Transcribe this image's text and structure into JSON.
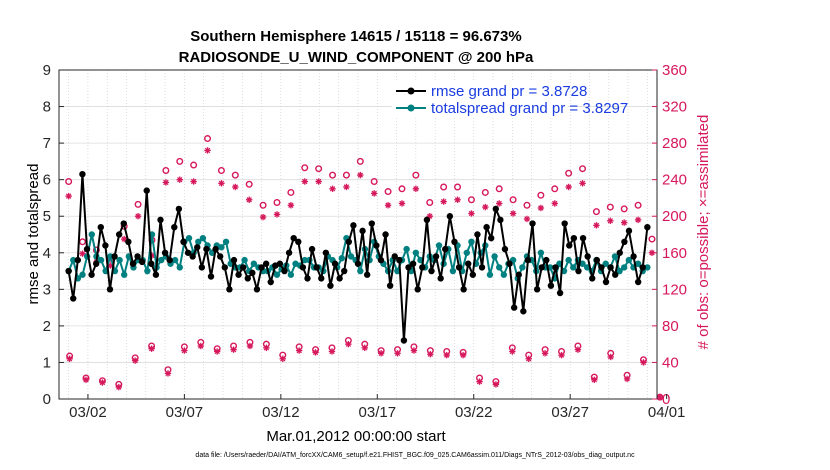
{
  "chart_data": {
    "type": "line",
    "title": "Southern Hemisphere 14615 / 15118 = 96.673%",
    "subtitle": "RADIOSONDE_U_WIND_COMPONENT @ 200 hPa",
    "xlabel": "Mar.01,2012 00:00:00 start",
    "ylabel": "rmse and totalspread",
    "y2label": "# of obs: o=possible; ×=assimilated",
    "footer": "data file: /Users/raeder/DAI/ATM_forcXX/CAM6_setup/f.e21.FHIST_BGC.f09_025.CAM6assim.011/Diags_NTrS_2012-03/obs_diag_output.nc",
    "xlim": [
      0.5,
      31.5
    ],
    "ylim": [
      0,
      9
    ],
    "y2lim": [
      0,
      360
    ],
    "xticks": [
      {
        "x": 2,
        "label": "03/02"
      },
      {
        "x": 7,
        "label": "03/07"
      },
      {
        "x": 12,
        "label": "03/12"
      },
      {
        "x": 17,
        "label": "03/17"
      },
      {
        "x": 22,
        "label": "03/22"
      },
      {
        "x": 27,
        "label": "03/27"
      },
      {
        "x": 32,
        "label": "04/01"
      }
    ],
    "yticks": [
      "0",
      "1",
      "2",
      "3",
      "4",
      "5",
      "6",
      "7",
      "8",
      "9"
    ],
    "y2ticks": [
      "0",
      "40",
      "80",
      "120",
      "160",
      "200",
      "240",
      "280",
      "320",
      "360"
    ],
    "legend": {
      "position": "top-right",
      "entries": [
        "rmse grand pr = 3.8728",
        "totalspread grand pr = 3.8297"
      ]
    },
    "colors": {
      "rmse": "#000000",
      "spread": "#008080",
      "obs": "#d6185c"
    },
    "series": [
      {
        "name": "rmse",
        "values": [
          3.5,
          2.75,
          3.8,
          6.15,
          4.1,
          3.4,
          3.7,
          4.7,
          4.2,
          3.0,
          3.9,
          4.5,
          4.8,
          4.3,
          3.7,
          3.9,
          3.75,
          5.7,
          3.7,
          3.4,
          4.9,
          4.0,
          3.8,
          4.7,
          5.2,
          4.3,
          4.0,
          3.9,
          4.15,
          3.6,
          4.1,
          3.35,
          4.1,
          3.9,
          3.6,
          3.0,
          3.8,
          3.4,
          3.6,
          3.3,
          3.45,
          3.0,
          3.6,
          3.7,
          3.2,
          3.65,
          3.7,
          3.5,
          4.0,
          4.4,
          4.3,
          3.6,
          3.3,
          4.1,
          3.6,
          3.3,
          4.0,
          3.1,
          3.7,
          3.3,
          3.5,
          4.3,
          4.75,
          3.7,
          4.6,
          3.4,
          4.8,
          4.2,
          3.8,
          4.5,
          3.1,
          3.9,
          3.8,
          1.6,
          3.6,
          3.7,
          3.0,
          3.6,
          4.9,
          3.5,
          3.9,
          3.3,
          4.1,
          5.0,
          4.3,
          3.6,
          3.0,
          3.7,
          3.4,
          4.5,
          3.6,
          4.7,
          4.4,
          5.2,
          4.9,
          4.1,
          3.7,
          2.5,
          3.4,
          2.4,
          3.8,
          4.8,
          3.0,
          3.6,
          3.8,
          3.1,
          3.6,
          2.9,
          4.8,
          4.2,
          4.4,
          3.5,
          4.4,
          3.9,
          3.3,
          3.8,
          3.6,
          3.2,
          3.6,
          3.4,
          4.0,
          4.3,
          4.6,
          3.9,
          3.2,
          3.6,
          4.7
        ]
      },
      {
        "name": "totalspread",
        "values": [
          3.5,
          3.8,
          3.3,
          3.4,
          3.9,
          4.5,
          3.9,
          3.8,
          3.5,
          3.9,
          3.5,
          3.8,
          3.4,
          3.9,
          3.6,
          3.8,
          3.8,
          3.5,
          4.5,
          3.6,
          3.8,
          3.9,
          3.7,
          3.8,
          3.6,
          4.3,
          4.4,
          4.0,
          4.3,
          4.4,
          4.2,
          4.0,
          4.2,
          4.15,
          4.3,
          3.7,
          3.6,
          3.6,
          3.8,
          3.5,
          3.7,
          3.6,
          3.5,
          3.5,
          3.6,
          3.4,
          3.55,
          3.65,
          3.4,
          3.7,
          3.65,
          3.8,
          3.8,
          3.6,
          3.6,
          3.5,
          3.9,
          3.8,
          3.6,
          3.85,
          4.4,
          3.9,
          3.8,
          3.5,
          4.1,
          3.8,
          4.3,
          3.9,
          3.7,
          3.5,
          3.8,
          3.5,
          3.8,
          4.1,
          3.5,
          4.0,
          3.8,
          3.6,
          3.9,
          3.8,
          4.2,
          3.7,
          4.1,
          3.5,
          4.2,
          3.5,
          4.0,
          4.3,
          3.7,
          4.0,
          4.2,
          3.4,
          3.9,
          3.6,
          3.4,
          3.7,
          3.8,
          3.3,
          3.6,
          3.9,
          3.8,
          3.5,
          4.0,
          3.6,
          3.6,
          3.3,
          3.7,
          3.5,
          3.8,
          3.6,
          3.8,
          3.7,
          3.6,
          3.5,
          3.8,
          3.5,
          3.7,
          3.6,
          3.9,
          3.5,
          3.6,
          3.8,
          3.6,
          3.7,
          3.5,
          3.6
        ]
      },
      {
        "name": "obs possible (day)",
        "values": [
          238,
          172,
          163,
          154,
          189,
          213,
          174,
          250,
          260,
          256,
          285,
          250,
          245,
          235,
          212,
          215,
          226,
          253,
          252,
          245,
          245,
          260,
          238,
          227,
          230,
          245,
          215,
          232,
          232,
          218,
          226,
          230,
          218,
          212,
          223,
          230,
          247,
          252,
          205,
          210,
          208,
          212,
          175
        ]
      },
      {
        "name": "obs assimilated (day)",
        "values": [
          222,
          159,
          150,
          146,
          175,
          200,
          157,
          237,
          240,
          238,
          272,
          236,
          232,
          218,
          199,
          202,
          212,
          238,
          238,
          230,
          232,
          245,
          225,
          212,
          214,
          230,
          200,
          216,
          218,
          203,
          210,
          214,
          203,
          197,
          209,
          214,
          232,
          236,
          190,
          195,
          193,
          196,
          160
        ]
      },
      {
        "name": "obs possible (night)",
        "values": [
          47,
          23,
          20,
          16,
          45,
          58,
          32,
          57,
          62,
          55,
          58,
          62,
          60,
          48,
          57,
          54,
          56,
          64,
          60,
          53,
          54,
          57,
          53,
          52,
          51,
          23,
          19,
          56,
          48,
          54,
          52,
          58,
          24,
          50,
          26,
          43,
          2
        ]
      },
      {
        "name": "obs assimilated (night)",
        "values": [
          44,
          21,
          18,
          13,
          42,
          55,
          28,
          53,
          58,
          52,
          54,
          58,
          56,
          44,
          53,
          51,
          52,
          60,
          56,
          50,
          50,
          53,
          49,
          48,
          48,
          19,
          16,
          52,
          44,
          50,
          48,
          54,
          21,
          46,
          22,
          40,
          2
        ]
      }
    ]
  }
}
